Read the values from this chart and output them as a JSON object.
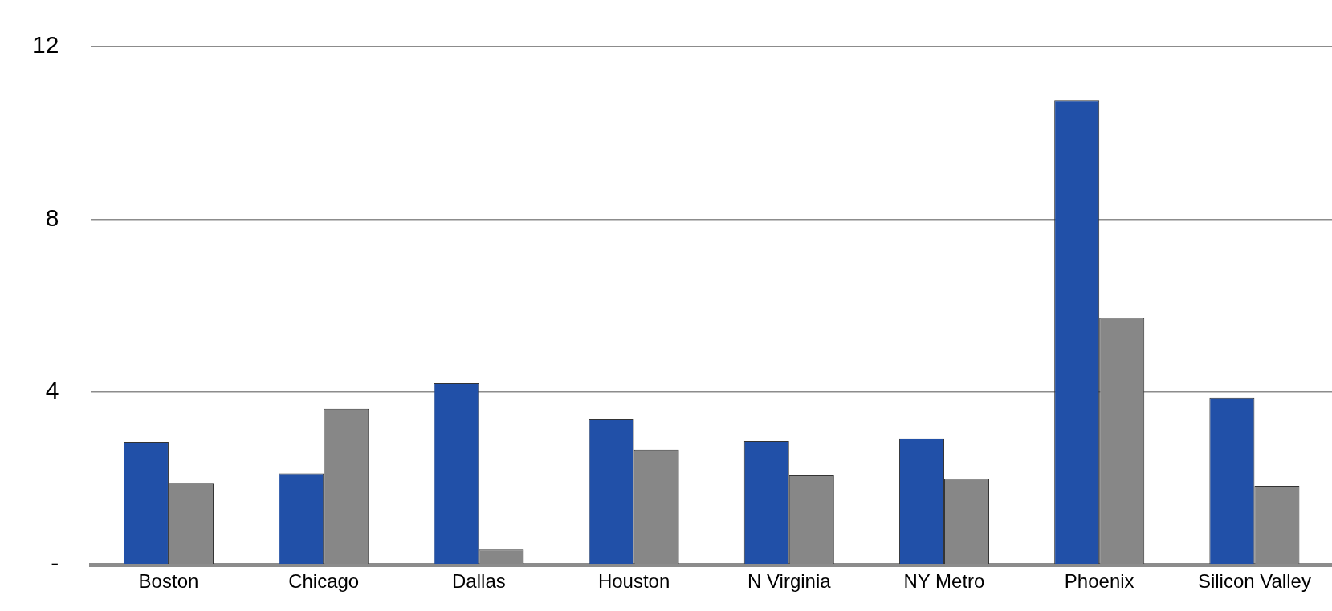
{
  "chart_data": {
    "type": "bar",
    "categories": [
      "Boston",
      "Chicago",
      "Dallas",
      "Houston",
      "N Virginia",
      "NY Metro",
      "Phoenix",
      "Silicon Valley"
    ],
    "series": [
      {
        "color": "#2150a8",
        "values": [
          2.84,
          2.11,
          4.2,
          3.36,
          2.86,
          2.92,
          10.75,
          3.87
        ]
      },
      {
        "color": "#878787",
        "values": [
          1.89,
          3.61,
          0.35,
          2.66,
          2.06,
          1.98,
          5.71,
          1.82
        ]
      }
    ],
    "ylim": [
      0,
      12
    ],
    "yticks": [
      {
        "value": 0,
        "label": "-"
      },
      4,
      8,
      12
    ],
    "grid": "y",
    "legend": false
  }
}
